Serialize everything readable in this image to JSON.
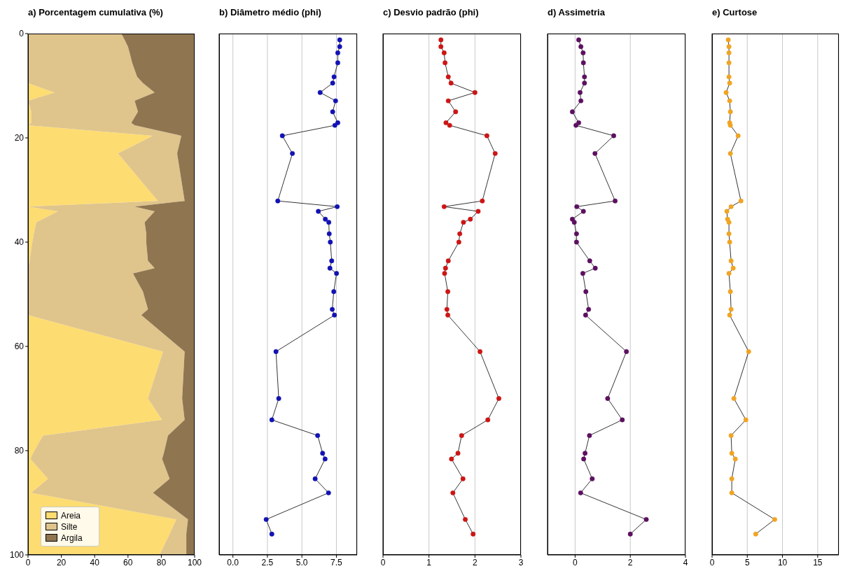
{
  "chart_data": [
    {
      "type": "area",
      "title": "a) Porcentagem cumulativa (%)",
      "orientation": "horizontal",
      "stacked": true,
      "legend": "bottom left",
      "x": [
        0,
        1.2,
        2.5,
        3.7,
        5.6,
        8.3,
        9.5,
        11.3,
        12.9,
        15.0,
        17.1,
        17.6,
        19.6,
        23.0,
        32.1,
        33.2,
        34.1,
        36.2,
        38.4,
        40.2,
        43.6,
        45.0,
        46.0,
        49.5,
        52.9,
        54.0,
        61.0,
        70.0,
        74.1,
        77.1,
        80.5,
        81.6,
        85.4,
        88.1,
        93.2,
        96.0,
        100
      ],
      "series": [
        {
          "name": "Areia",
          "color": "#fddc71",
          "values": [
            0,
            0,
            0,
            0,
            0,
            0,
            0,
            16,
            0,
            2,
            2,
            0,
            75,
            54,
            78,
            0,
            18,
            5,
            3.5,
            2.5,
            1,
            0,
            0,
            0,
            0,
            0,
            81,
            72,
            80.5,
            9,
            3,
            1.5,
            12,
            2,
            89,
            85,
            79
          ]
        },
        {
          "name": "Silte",
          "color": "#dfc48c",
          "values": [
            56,
            58,
            60,
            61,
            62.5,
            65.5,
            69,
            60,
            64,
            64,
            60,
            64,
            17,
            35.5,
            16,
            64,
            58,
            65,
            67.5,
            68.5,
            71,
            76,
            63,
            69,
            72,
            68,
            13,
            20.5,
            13.5,
            75,
            78.5,
            79,
            73,
            73,
            7,
            10,
            16
          ]
        },
        {
          "name": "Argila",
          "color": "#8f7650",
          "values": [
            44,
            42,
            40,
            39,
            37.5,
            34.5,
            31,
            24,
            36,
            34,
            38,
            36,
            8,
            10.5,
            6,
            36,
            24,
            30,
            29,
            29,
            28,
            24,
            37,
            31,
            28,
            32,
            6,
            7.5,
            6,
            16,
            18.5,
            19.5,
            15,
            25,
            4,
            5,
            5
          ]
        }
      ],
      "xlim": [
        0,
        100
      ],
      "xticks": [
        0,
        20,
        40,
        60,
        80,
        100
      ],
      "ylim": [
        100,
        0
      ],
      "yticks": [
        0,
        20,
        40,
        60,
        80,
        100
      ]
    },
    {
      "type": "line",
      "title": "b) Diâmetro médio (phi)",
      "orientation": "horizontal",
      "marker": "circle",
      "grid": true,
      "tick_labels": "x",
      "x": [
        1.2,
        2.5,
        3.7,
        5.6,
        8.3,
        9.5,
        11.3,
        12.9,
        15.0,
        17.1,
        17.6,
        19.6,
        23.0,
        32.1,
        33.2,
        34.1,
        35.6,
        36.2,
        38.4,
        40.0,
        43.6,
        45.0,
        46.0,
        49.5,
        52.9,
        54.0,
        61.0,
        70.0,
        74.1,
        77.1,
        80.5,
        81.6,
        85.4,
        88.1,
        93.2,
        96.0
      ],
      "series": [
        {
          "color": "#1212b4",
          "values": [
            7.74,
            7.74,
            7.6,
            7.6,
            7.33,
            7.23,
            6.32,
            7.44,
            7.23,
            7.6,
            7.39,
            3.58,
            4.31,
            3.25,
            7.56,
            6.19,
            6.7,
            6.95,
            6.98,
            7.06,
            7.16,
            7.03,
            7.51,
            7.31,
            7.2,
            7.36,
            3.12,
            3.32,
            2.82,
            6.14,
            6.5,
            6.68,
            5.96,
            6.93,
            2.41,
            2.82
          ]
        }
      ],
      "xlim": [
        -1,
        9
      ],
      "xticks": [
        {
          "value": 0,
          "label": "0.0"
        },
        2.5,
        {
          "value": 5,
          "label": "5.0"
        },
        7.5
      ],
      "ylim": [
        100,
        0
      ],
      "yticks": [
        0,
        20,
        40,
        60,
        80,
        100
      ]
    },
    {
      "type": "line",
      "title": "c) Desvio padrão (phi)",
      "orientation": "horizontal",
      "marker": "circle",
      "grid": true,
      "tick_labels": "x",
      "x": [
        1.2,
        2.5,
        3.7,
        5.6,
        8.3,
        9.5,
        11.3,
        12.9,
        15.0,
        17.1,
        17.6,
        19.6,
        23.0,
        32.1,
        33.2,
        34.1,
        35.6,
        36.2,
        38.4,
        40.0,
        43.6,
        45.0,
        46.0,
        49.5,
        52.9,
        54.0,
        61.0,
        70.0,
        74.1,
        77.1,
        80.5,
        81.6,
        85.4,
        88.1,
        93.2,
        96.0
      ],
      "series": [
        {
          "color": "#cc1515",
          "values": [
            1.26,
            1.26,
            1.33,
            1.35,
            1.42,
            1.48,
            2.0,
            1.42,
            1.58,
            1.37,
            1.45,
            2.26,
            2.44,
            2.16,
            1.33,
            2.07,
            1.9,
            1.75,
            1.67,
            1.65,
            1.42,
            1.36,
            1.34,
            1.41,
            1.39,
            1.41,
            2.11,
            2.52,
            2.28,
            1.71,
            1.63,
            1.49,
            1.74,
            1.52,
            1.79,
            1.96
          ]
        }
      ],
      "xlim": [
        0,
        3
      ],
      "xticks": [
        0,
        1,
        2,
        3
      ],
      "ylim": [
        100,
        0
      ],
      "yticks": [
        0,
        20,
        40,
        60,
        80,
        100
      ]
    },
    {
      "type": "line",
      "title": "d) Assimetria",
      "orientation": "horizontal",
      "marker": "circle",
      "grid": true,
      "tick_labels": "x",
      "x": [
        1.2,
        2.5,
        3.7,
        5.6,
        8.3,
        9.5,
        11.3,
        12.9,
        15.0,
        17.1,
        17.6,
        19.6,
        23.0,
        32.1,
        33.2,
        34.1,
        35.6,
        36.2,
        38.4,
        40.0,
        43.6,
        45.0,
        46.0,
        49.5,
        52.9,
        54.0,
        61.0,
        70.0,
        74.1,
        77.1,
        80.5,
        81.6,
        85.4,
        88.1,
        93.2,
        96.0
      ],
      "series": [
        {
          "color": "#5c1060",
          "values": [
            0.13,
            0.21,
            0.29,
            0.3,
            0.34,
            0.34,
            0.18,
            0.21,
            -0.1,
            0.13,
            0.03,
            1.4,
            0.72,
            1.45,
            0.06,
            0.3,
            -0.1,
            -0.03,
            0.05,
            0.05,
            0.53,
            0.73,
            0.28,
            0.39,
            0.49,
            0.38,
            1.86,
            1.18,
            1.71,
            0.52,
            0.36,
            0.31,
            0.62,
            0.2,
            2.58,
            2.0
          ]
        }
      ],
      "xlim": [
        -1,
        4
      ],
      "xticks": [
        0,
        2,
        4
      ],
      "ylim": [
        100,
        0
      ],
      "yticks": [
        0,
        20,
        40,
        60,
        80,
        100
      ]
    },
    {
      "type": "line",
      "title": "e) Curtose",
      "orientation": "horizontal",
      "marker": "circle",
      "grid": true,
      "tick_labels": "x",
      "x": [
        1.2,
        2.5,
        3.7,
        5.6,
        8.3,
        9.5,
        11.3,
        12.9,
        15.0,
        17.1,
        17.6,
        19.6,
        23.0,
        32.1,
        33.2,
        34.1,
        35.6,
        36.2,
        38.4,
        40.0,
        43.6,
        45.0,
        46.0,
        49.5,
        52.9,
        54.0,
        61.0,
        70.0,
        74.1,
        77.1,
        80.5,
        81.6,
        85.4,
        88.1,
        93.2,
        96.0
      ],
      "series": [
        {
          "color": "#f0a424",
          "values": [
            2.3,
            2.4,
            2.4,
            2.4,
            2.4,
            2.5,
            2.0,
            2.5,
            2.6,
            2.5,
            2.6,
            3.7,
            2.6,
            4.1,
            2.7,
            2.1,
            2.2,
            2.4,
            2.4,
            2.5,
            2.7,
            3.0,
            2.4,
            2.6,
            2.7,
            2.5,
            5.2,
            3.1,
            4.8,
            2.7,
            2.8,
            3.3,
            2.8,
            2.8,
            8.9,
            6.2
          ]
        }
      ],
      "xlim": [
        0,
        18
      ],
      "xticks": [
        0,
        5,
        10,
        15
      ],
      "ylim": [
        100,
        0
      ],
      "yticks": [
        0,
        20,
        40,
        60,
        80,
        100
      ]
    }
  ]
}
